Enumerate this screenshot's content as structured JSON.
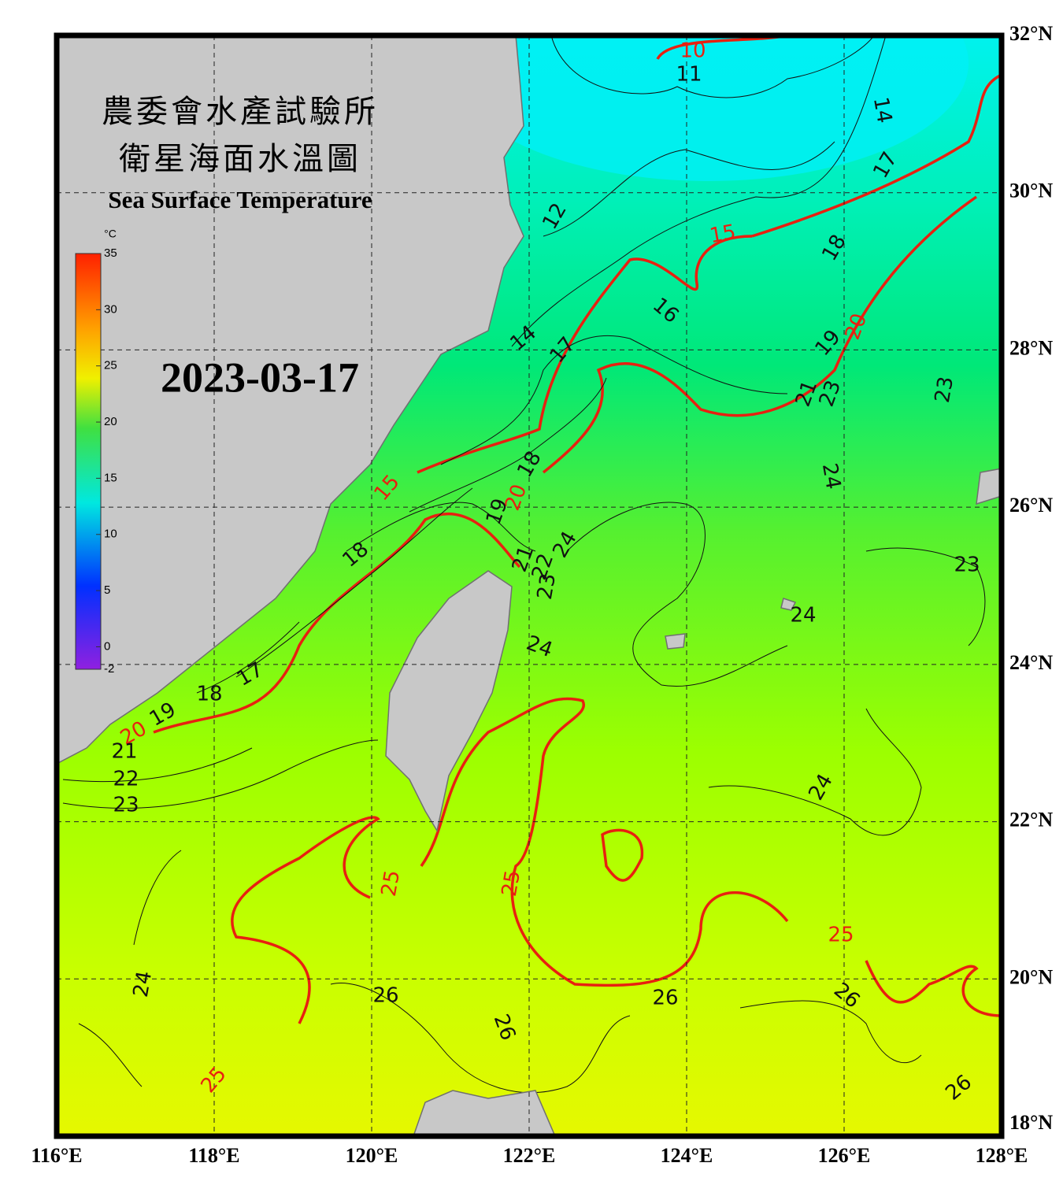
{
  "header": {
    "title_zh": "農委會水產試驗所",
    "subtitle_zh": "衛星海面水溫圖",
    "title_en": "Sea Surface Temperature",
    "date": "2023-03-17"
  },
  "colorbar": {
    "unit": "°C",
    "lim": [
      -2,
      35
    ],
    "ticks": [
      35,
      30,
      25,
      20,
      15,
      10,
      5,
      0,
      -2
    ]
  },
  "map": {
    "lonlim": [
      116,
      128
    ],
    "latlim": [
      18,
      32
    ],
    "grid": true,
    "lon_ticks": [
      {
        "value": 116,
        "label": "116°E"
      },
      {
        "value": 118,
        "label": "118°E"
      },
      {
        "value": 120,
        "label": "120°E"
      },
      {
        "value": 122,
        "label": "122°E"
      },
      {
        "value": 124,
        "label": "124°E"
      },
      {
        "value": 126,
        "label": "126°E"
      },
      {
        "value": 128,
        "label": "128°E"
      }
    ],
    "lat_ticks": [
      {
        "value": 32,
        "label": "32°N"
      },
      {
        "value": 30,
        "label": "30°N"
      },
      {
        "value": 28,
        "label": "28°N"
      },
      {
        "value": 26,
        "label": "26°N"
      },
      {
        "value": 24,
        "label": "24°N"
      },
      {
        "value": 22,
        "label": "22°N"
      },
      {
        "value": 20,
        "label": "20°N"
      },
      {
        "value": 18,
        "label": "18°N"
      }
    ],
    "contour_labels": [
      10,
      15,
      20,
      15,
      20,
      20,
      25,
      25,
      25,
      25,
      11,
      14,
      17,
      12,
      18,
      16,
      14,
      17,
      19,
      21,
      23,
      23,
      24,
      18,
      19,
      21,
      22,
      23,
      24,
      23,
      18,
      24,
      24,
      17,
      18,
      19,
      21,
      22,
      23,
      24,
      24,
      26,
      26,
      26,
      26,
      26
    ]
  }
}
